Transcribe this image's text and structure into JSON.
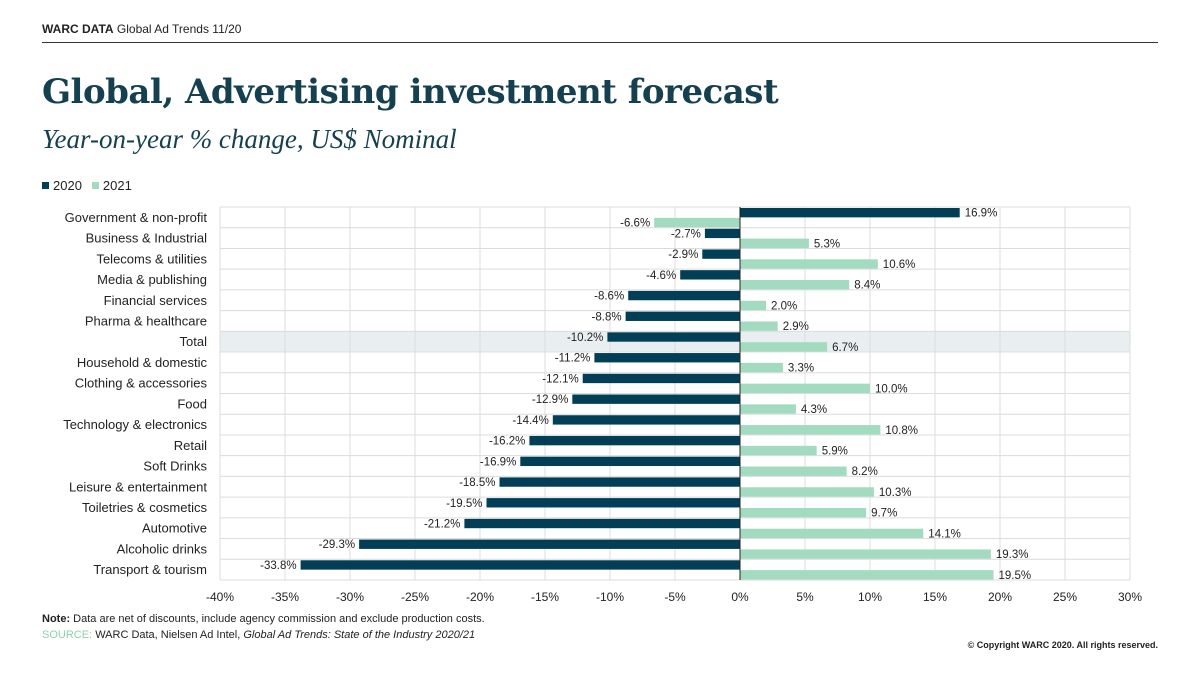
{
  "header": {
    "brand": "WARC DATA",
    "text": "Global Ad Trends 11/20"
  },
  "title": "Global, Advertising investment forecast",
  "subtitle": "Year-on-year % change, US$ Nominal",
  "footer": {
    "note_label": "Note:",
    "note": "Data are net of discounts, include agency commission and exclude production costs.",
    "source_label": "SOURCE:",
    "source": "WARC Data, Nielsen Ad Intel,",
    "source_italic": "Global Ad Trends: State of the Industry 2020/21",
    "copyright": "© Copyright WARC 2020. All rights reserved."
  },
  "chart_data": {
    "type": "bar",
    "orientation": "horizontal",
    "categories": [
      "Government & non-profit",
      "Business & Industrial",
      "Telecoms & utilities",
      "Media & publishing",
      "Financial services",
      "Pharma & healthcare",
      "Total",
      "Household & domestic",
      "Clothing & accessories",
      "Food",
      "Technology & electronics",
      "Retail",
      "Soft Drinks",
      "Leisure & entertainment",
      "Toiletries & cosmetics",
      "Automotive",
      "Alcoholic drinks",
      "Transport & tourism"
    ],
    "highlight_category": "Total",
    "series": [
      {
        "name": "2020",
        "color": "#023f56",
        "values": [
          16.9,
          -2.7,
          -2.9,
          -4.6,
          -8.6,
          -8.8,
          -10.2,
          -11.2,
          -12.1,
          -12.9,
          -14.4,
          -16.2,
          -16.9,
          -18.5,
          -19.5,
          -21.2,
          -29.3,
          -33.8
        ]
      },
      {
        "name": "2021",
        "color": "#a2dbbf",
        "values": [
          -6.6,
          5.3,
          10.6,
          8.4,
          2.0,
          2.9,
          6.7,
          3.3,
          10.0,
          4.3,
          10.8,
          5.9,
          8.2,
          10.3,
          9.7,
          14.1,
          19.3,
          19.5
        ]
      }
    ],
    "xlim": [
      -40,
      30
    ],
    "xticks": [
      "-40%",
      "-35%",
      "-30%",
      "-25%",
      "-20%",
      "-15%",
      "-10%",
      "-5%",
      "0%",
      "5%",
      "10%",
      "15%",
      "20%",
      "25%",
      "30%"
    ],
    "grid": true,
    "legend_position": "top-left",
    "value_format": "%"
  }
}
